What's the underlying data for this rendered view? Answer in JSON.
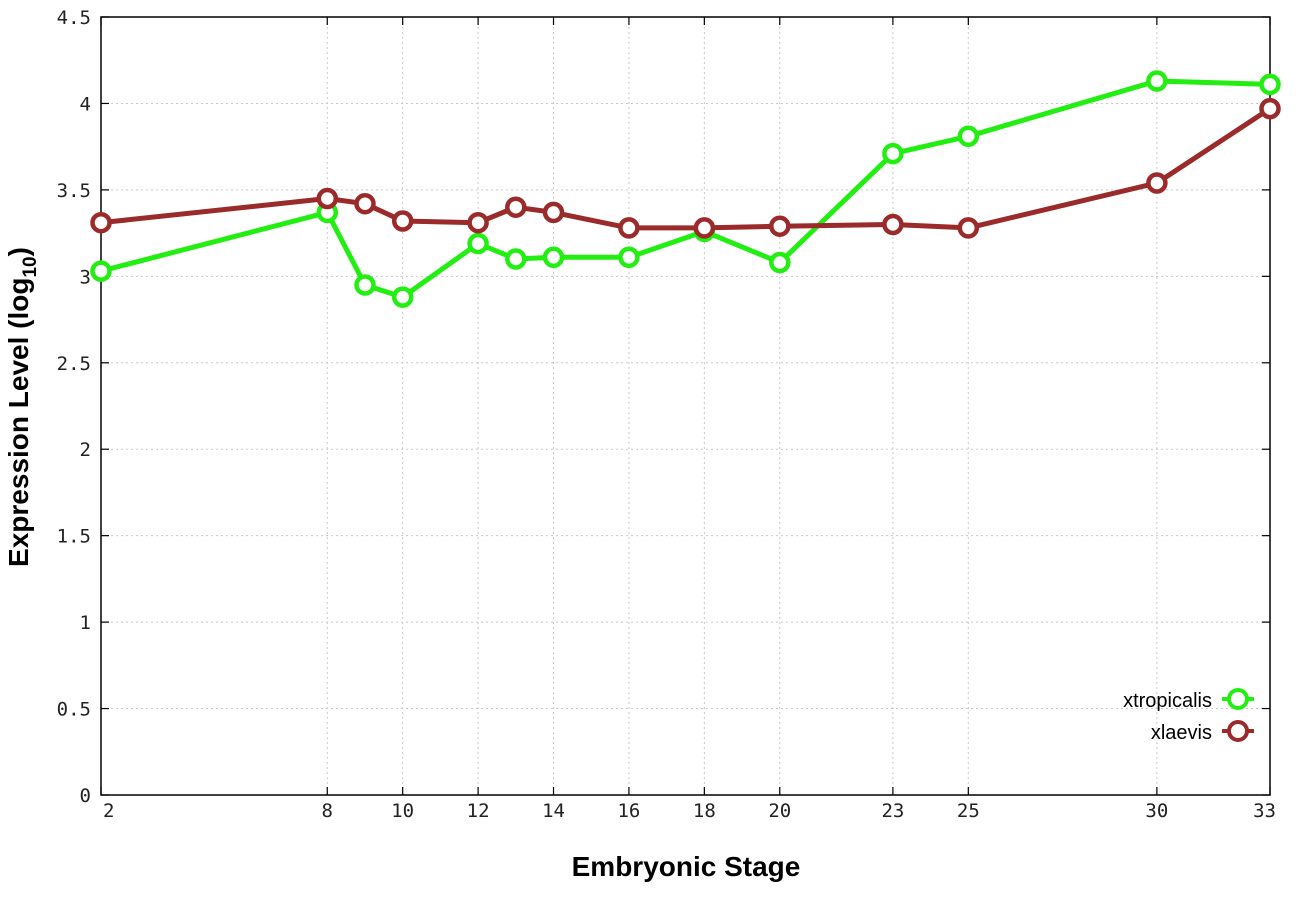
{
  "chart_data": {
    "type": "line",
    "xlabel": "Embryonic Stage",
    "ylabel_main": "Expression Level (log",
    "ylabel_sub": "10",
    "ylabel_close": ")",
    "x_ticks": [
      2,
      8,
      10,
      12,
      14,
      16,
      18,
      20,
      23,
      25,
      30,
      33
    ],
    "x_tick_labels": [
      "2",
      "8",
      "10",
      "12",
      "14",
      "16",
      "18",
      "20",
      "23",
      "25",
      "30",
      "33"
    ],
    "y_ticks": [
      0,
      0.5,
      1,
      1.5,
      2,
      2.5,
      3,
      3.5,
      4,
      4.5
    ],
    "y_tick_labels": [
      "0",
      "0.5",
      "1",
      "1.5",
      "2",
      "2.5",
      "3",
      "3.5",
      "4",
      "4.5"
    ],
    "ylim": [
      0,
      4.5
    ],
    "grid": true,
    "legend_position": "bottom-right",
    "series": [
      {
        "name": "xtropicalis",
        "color": "#22ee11",
        "marker": "open-circle",
        "x": [
          2,
          8,
          9,
          10,
          12,
          13,
          14,
          16,
          18,
          20,
          23,
          25,
          30,
          33
        ],
        "y": [
          3.03,
          3.37,
          2.95,
          2.88,
          3.19,
          3.1,
          3.11,
          3.11,
          3.26,
          3.08,
          3.71,
          3.81,
          4.13,
          4.11
        ]
      },
      {
        "name": "xlaevis",
        "color": "#9b2a2a",
        "marker": "open-circle",
        "x": [
          2,
          8,
          9,
          10,
          12,
          13,
          14,
          16,
          18,
          20,
          23,
          25,
          30,
          33
        ],
        "y": [
          3.31,
          3.45,
          3.42,
          3.32,
          3.31,
          3.4,
          3.37,
          3.28,
          3.28,
          3.29,
          3.3,
          3.28,
          3.54,
          3.97
        ]
      }
    ]
  }
}
